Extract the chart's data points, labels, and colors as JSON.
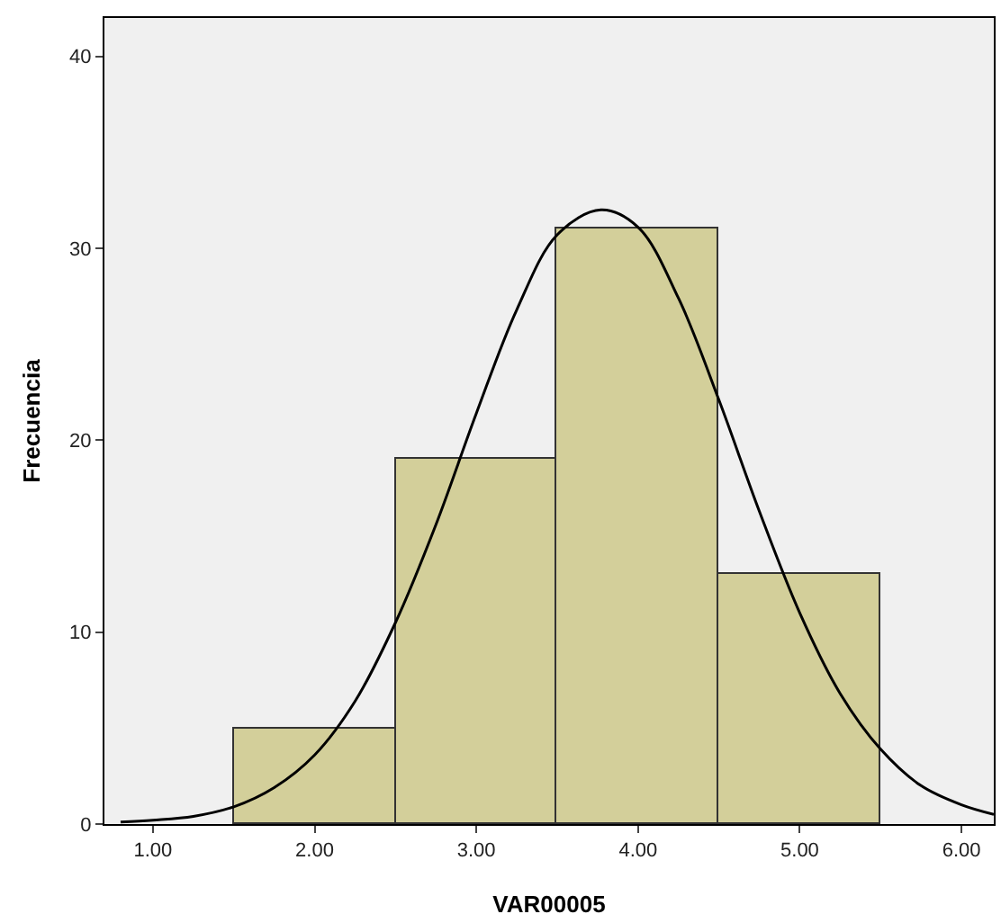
{
  "chart_data": {
    "type": "histogram",
    "xlabel": "VAR00005",
    "ylabel": "Frecuencia",
    "bins": [
      1.5,
      2.5,
      3.5,
      4.5,
      5.5
    ],
    "values": [
      5,
      19,
      31,
      13
    ],
    "color": "#d3cf9a",
    "series": [
      {
        "type": "line",
        "color": "#000000",
        "x": [
          0.8,
          1.0,
          1.25,
          1.5,
          1.75,
          2.0,
          2.25,
          2.5,
          2.75,
          3.0,
          3.25,
          3.5,
          3.77,
          4.0,
          4.25,
          4.5,
          4.75,
          5.0,
          5.25,
          5.5,
          5.75,
          6.0,
          6.2
        ],
        "values": [
          0.1,
          0.2,
          0.4,
          0.9,
          1.9,
          3.6,
          6.4,
          10.5,
          15.6,
          21.4,
          26.8,
          30.7,
          32,
          31.1,
          27.4,
          22.1,
          16.3,
          11,
          6.8,
          3.9,
          2,
          1,
          0.5
        ]
      }
    ],
    "xlim": [
      0.7,
      6.2
    ],
    "xticks": [
      {
        "value": 1,
        "label": "1.00"
      },
      {
        "value": 2,
        "label": "2.00"
      },
      {
        "value": 3,
        "label": "3.00"
      },
      {
        "value": 4,
        "label": "4.00"
      },
      {
        "value": 5,
        "label": "5.00"
      },
      {
        "value": 6,
        "label": "6.00"
      }
    ],
    "ylim": [
      0,
      42
    ],
    "yticks": [
      0,
      10,
      20,
      30,
      40
    ],
    "grid": false,
    "marker": "none",
    "line_style": "solid"
  }
}
